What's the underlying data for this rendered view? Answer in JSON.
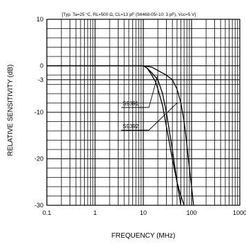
{
  "chart_data": {
    "type": "line",
    "title": "[Typ. Ta=25 °C, RL=500 Ω, CL=13 pF (S6468-05/-10: 3 pF), Vcc=5 V]",
    "xlabel": "FREQUENCY (MHz)",
    "ylabel": "RELATIVE SENSITIVITY (dB)",
    "x_scale": "log",
    "xlim": [
      0.1,
      1000
    ],
    "ylim": [
      -30,
      10
    ],
    "x_ticks": [
      0.1,
      1,
      10,
      100,
      1000
    ],
    "x_tick_labels": [
      "0.1",
      "1",
      "10",
      "100",
      "1000"
    ],
    "y_ticks": [
      10,
      0,
      -3,
      -10,
      -20,
      -30
    ],
    "y_tick_labels": [
      "10",
      "0",
      "-3",
      "-10",
      "-20",
      "-30"
    ],
    "grid": true,
    "series": [
      {
        "name": "S9391",
        "x": [
          0.1,
          10,
          12,
          15,
          20,
          25,
          30,
          40,
          50,
          60
        ],
        "y": [
          0,
          0,
          -0.5,
          -1.5,
          -3,
          -6,
          -10,
          -18,
          -25,
          -30
        ]
      },
      {
        "name": "S9392",
        "x": [
          0.1,
          10,
          15,
          20,
          30,
          40,
          50,
          60,
          70,
          80,
          90,
          100,
          110
        ],
        "y": [
          0,
          0,
          -0.3,
          -1,
          -2,
          -3,
          -5,
          -8,
          -12,
          -17,
          -22,
          -26,
          -30
        ]
      }
    ],
    "extra_curves": [
      {
        "x": [
          0.1,
          10,
          12,
          15,
          18,
          20,
          25,
          30,
          40,
          50,
          60,
          70
        ],
        "y": [
          0,
          0,
          -0.5,
          -2,
          -3.5,
          -5,
          -8.5,
          -13,
          -20,
          -25,
          -28,
          -30
        ]
      }
    ]
  }
}
